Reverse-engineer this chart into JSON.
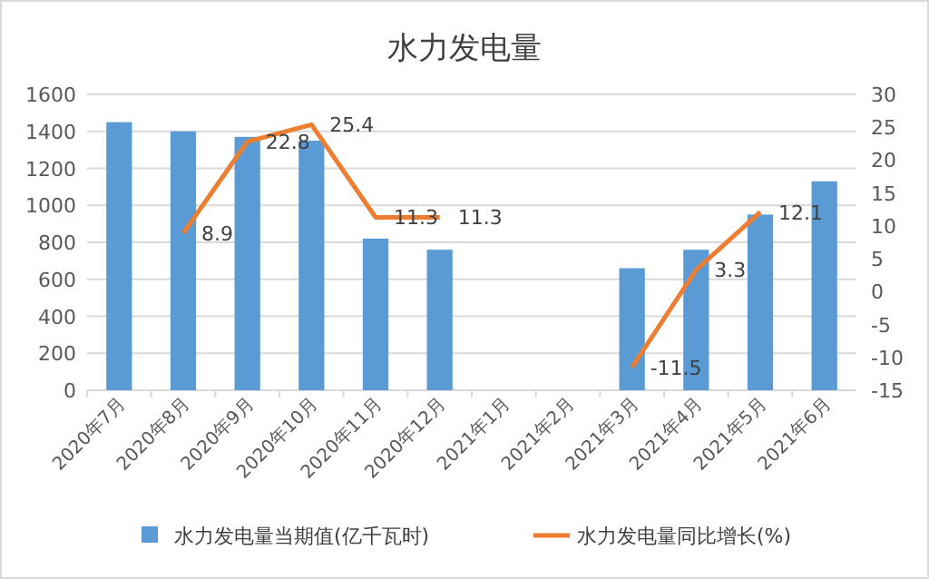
{
  "chart_data": {
    "type": "bar",
    "title": "水力发电量",
    "categories": [
      "2020年7月",
      "2020年8月",
      "2020年9月",
      "2020年10月",
      "2020年11月",
      "2020年12月",
      "2021年1月",
      "2021年2月",
      "2021年3月",
      "2021年4月",
      "2021年5月",
      "2021年6月"
    ],
    "series": [
      {
        "name": "水力发电量当期值(亿千瓦时)",
        "color": "#5b9bd5",
        "values": [
          1450,
          1400,
          1370,
          1350,
          820,
          760,
          null,
          null,
          660,
          760,
          950,
          1130
        ]
      },
      {
        "name": "水力发电量同比增长(%)",
        "type": "line",
        "axis": "y2",
        "color": "#ed7d31",
        "values": [
          null,
          8.9,
          22.8,
          25.4,
          11.3,
          11.3,
          null,
          null,
          -11.5,
          3.3,
          12.1,
          null
        ],
        "value_labels": [
          null,
          "8.9",
          "22.8",
          "25.4",
          "11.3",
          "11.3",
          null,
          null,
          "-11.5",
          "3.3",
          "12.1",
          null
        ]
      }
    ],
    "ylim": [
      0,
      1600
    ],
    "yticks": [
      0,
      200,
      400,
      600,
      800,
      1000,
      1200,
      1400,
      1600
    ],
    "y2lim": [
      -15,
      30
    ],
    "y2ticks": [
      -15,
      -10,
      -5,
      0,
      5,
      10,
      15,
      20,
      25,
      30
    ],
    "grid": "y",
    "legend": "bottom",
    "marker": "none",
    "line_style": "solid"
  }
}
